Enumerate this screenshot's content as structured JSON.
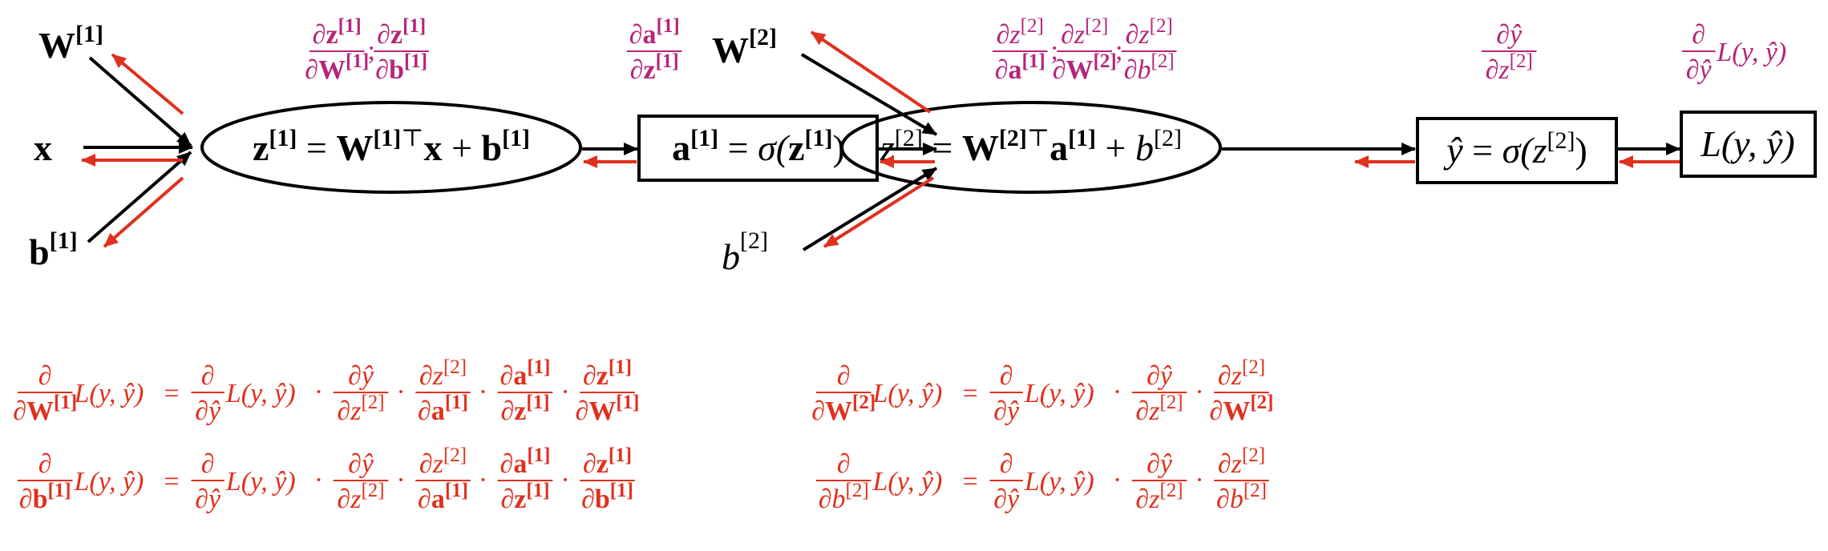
{
  "colors": {
    "forward_arrow": "#000000",
    "backward_arrow": "#e0301e",
    "local_gradient_label": "#b5257a",
    "chain_rule_equations": "#e0301e",
    "node_outline": "#000000"
  },
  "inputs": {
    "W1": {
      "base": "W",
      "sup": "[1]"
    },
    "x": {
      "base": "x"
    },
    "b1": {
      "base": "b",
      "sup": "[1]"
    },
    "W2": {
      "base": "W",
      "sup": "[2]"
    },
    "b2": {
      "base": "b",
      "sup": "[2]"
    }
  },
  "nodes": {
    "z1": {
      "shape": "ellipse",
      "lhs": "z",
      "lhs_sup": "[1]",
      "eq": " = ",
      "w": "W",
      "w_sup": "[1]",
      "t": "⊤",
      "x": "x",
      "plus": " + ",
      "b": "b",
      "b_sup": "[1]"
    },
    "a1": {
      "shape": "rectangle",
      "lhs": "a",
      "lhs_sup": "[1]",
      "eq": " = ",
      "fn": "σ(",
      "arg": "z",
      "arg_sup": "[1]",
      "close": ")"
    },
    "z2": {
      "shape": "ellipse",
      "lhs": "z",
      "lhs_sup": "[2]",
      "eq": " = ",
      "w": "W",
      "w_sup": "[2]",
      "t": "⊤",
      "a": "a",
      "a_sup": "[1]",
      "plus": " + ",
      "b": "b",
      "b_sup": "[2]"
    },
    "yhat": {
      "shape": "rectangle",
      "lhs": "ŷ",
      "eq": " = ",
      "fn": "σ(",
      "arg": "z",
      "arg_sup": "[2]",
      "close": ")"
    },
    "loss": {
      "shape": "rectangle",
      "text": "L(y, ŷ)"
    }
  },
  "local_gradients": {
    "z1": [
      {
        "num": "∂z",
        "num_sup": "[1]",
        "den": "∂W",
        "den_sup": "[1]"
      },
      {
        "num": "∂z",
        "num_sup": "[1]",
        "den": "∂b",
        "den_sup": "[1]"
      }
    ],
    "a1": [
      {
        "num": "∂a",
        "num_sup": "[1]",
        "den": "∂z",
        "den_sup": "[1]"
      }
    ],
    "z2": [
      {
        "num": "∂z",
        "num_sup": "[2]",
        "den": "∂a",
        "den_sup": "[1]"
      },
      {
        "num": "∂z",
        "num_sup": "[2]",
        "den": "∂W",
        "den_sup": "[2]"
      },
      {
        "num": "∂z",
        "num_sup": "[2]",
        "den": "∂b",
        "den_sup": "[2]"
      }
    ],
    "yhat": [
      {
        "num": "∂ŷ",
        "num_sup": "",
        "den": "∂z",
        "den_sup": "[2]"
      }
    ],
    "loss": [
      {
        "num": "∂",
        "num_sup": "",
        "den": "∂ŷ",
        "den_sup": "",
        "suffix": "L(y, ŷ)"
      }
    ],
    "separator": ";"
  },
  "chain_rule": {
    "dot": "·",
    "equals": "=",
    "loss_expr": "L(y, ŷ)",
    "partial": "∂",
    "equations": [
      {
        "lhs": {
          "den": "∂W",
          "den_sup": "[1]"
        },
        "factors": [
          {
            "num": "∂",
            "num_sup": "",
            "den": "∂ŷ",
            "den_sup": "",
            "suffix": "L(y, ŷ)"
          },
          {
            "num": "∂ŷ",
            "num_sup": "",
            "den": "∂z",
            "den_sup": "[2]"
          },
          {
            "num": "∂z",
            "num_sup": "[2]",
            "den": "∂a",
            "den_sup": "[1]"
          },
          {
            "num": "∂a",
            "num_sup": "[1]",
            "den": "∂z",
            "den_sup": "[1]"
          },
          {
            "num": "∂z",
            "num_sup": "[1]",
            "den": "∂W",
            "den_sup": "[1]"
          }
        ]
      },
      {
        "lhs": {
          "den": "∂b",
          "den_sup": "[1]"
        },
        "factors": [
          {
            "num": "∂",
            "num_sup": "",
            "den": "∂ŷ",
            "den_sup": "",
            "suffix": "L(y, ŷ)"
          },
          {
            "num": "∂ŷ",
            "num_sup": "",
            "den": "∂z",
            "den_sup": "[2]"
          },
          {
            "num": "∂z",
            "num_sup": "[2]",
            "den": "∂a",
            "den_sup": "[1]"
          },
          {
            "num": "∂a",
            "num_sup": "[1]",
            "den": "∂z",
            "den_sup": "[1]"
          },
          {
            "num": "∂z",
            "num_sup": "[1]",
            "den": "∂b",
            "den_sup": "[1]"
          }
        ]
      },
      {
        "lhs": {
          "den": "∂W",
          "den_sup": "[2]"
        },
        "factors": [
          {
            "num": "∂",
            "num_sup": "",
            "den": "∂ŷ",
            "den_sup": "",
            "suffix": "L(y, ŷ)"
          },
          {
            "num": "∂ŷ",
            "num_sup": "",
            "den": "∂z",
            "den_sup": "[2]"
          },
          {
            "num": "∂z",
            "num_sup": "[2]",
            "den": "∂W",
            "den_sup": "[2]"
          }
        ]
      },
      {
        "lhs": {
          "den": "∂b",
          "den_sup": "[2]"
        },
        "factors": [
          {
            "num": "∂",
            "num_sup": "",
            "den": "∂ŷ",
            "den_sup": "",
            "suffix": "L(y, ŷ)"
          },
          {
            "num": "∂ŷ",
            "num_sup": "",
            "den": "∂z",
            "den_sup": "[2]"
          },
          {
            "num": "∂z",
            "num_sup": "[2]",
            "den": "∂b",
            "den_sup": "[2]"
          }
        ]
      }
    ]
  }
}
